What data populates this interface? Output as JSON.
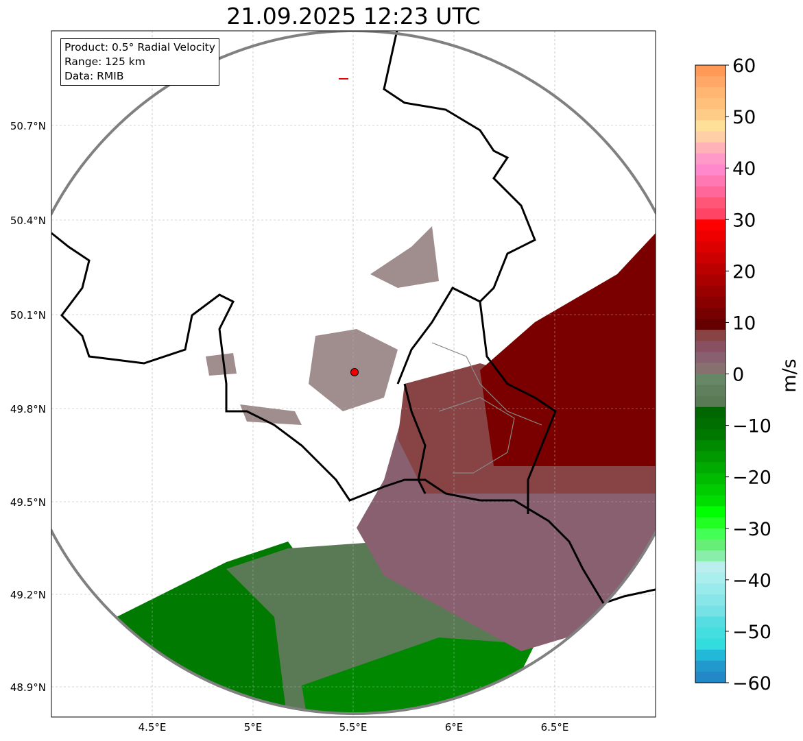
{
  "title": "21.09.2025 12:23 UTC",
  "info": {
    "product": "Product: 0.5° Radial Velocity",
    "range": "Range: 125 km",
    "data": "Data: RMIB"
  },
  "axes": {
    "lat_ticks": [
      "50.7°N",
      "50.4°N",
      "50.1°N",
      "49.8°N",
      "49.5°N",
      "49.2°N",
      "48.9°N"
    ],
    "lon_ticks": [
      "4.5°E",
      "5°E",
      "5.5°E",
      "6°E",
      "6.5°E"
    ]
  },
  "colorbar": {
    "label": "m/s",
    "ticks": [
      "60",
      "50",
      "40",
      "30",
      "20",
      "10",
      "0",
      "−10",
      "−20",
      "−30",
      "−40",
      "−50",
      "−60"
    ],
    "colors": [
      "#ff9955",
      "#ffa766",
      "#ffb673",
      "#ffc07c",
      "#ffcc88",
      "#ffe099",
      "#ffd0a8",
      "#ffb3b9",
      "#ff99c8",
      "#ff88cc",
      "#ff77b3",
      "#ff6699",
      "#ff5577",
      "#ff4466",
      "#ff0000",
      "#ee0000",
      "#dd0000",
      "#cc0000",
      "#bb0000",
      "#aa0000",
      "#990000",
      "#880000",
      "#770000",
      "#660000",
      "#884444",
      "#885060",
      "#886070",
      "#887070",
      "#668866",
      "#607f5c",
      "#5a7a55",
      "#006600",
      "#006e00",
      "#007800",
      "#008a00",
      "#009900",
      "#00aa00",
      "#00bb00",
      "#00cc00",
      "#00dd00",
      "#00ff00",
      "#22ff22",
      "#44ff55",
      "#66ee77",
      "#88eeaa",
      "#bbeeee",
      "#aaeeee",
      "#99eaea",
      "#88e6e8",
      "#77e2e6",
      "#55dde2",
      "#44dde0",
      "#33ddde",
      "#22b8d8",
      "#2299cc",
      "#2288c8"
    ],
    "accent_ring": "#808080"
  }
}
